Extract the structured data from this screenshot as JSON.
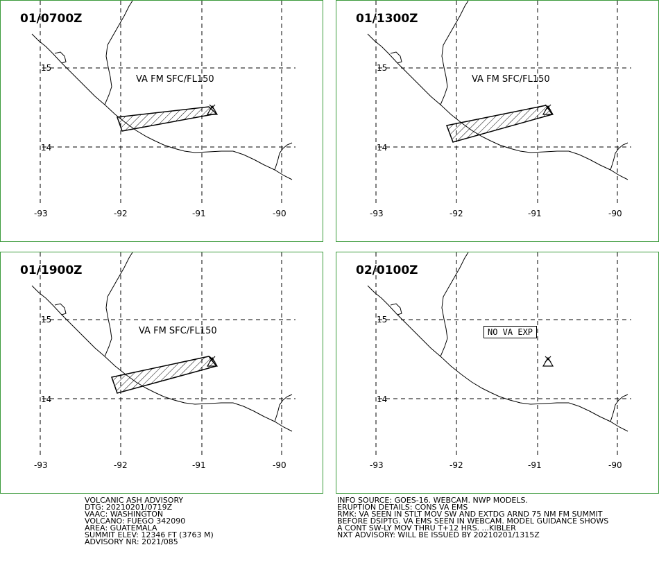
{
  "panels": [
    {
      "title": "01/0700Z",
      "label": "VA FM SFC/FL150",
      "kind": "ash"
    },
    {
      "title": "01/1300Z",
      "label": "VA FM SFC/FL150",
      "kind": "ash"
    },
    {
      "title": "01/1900Z",
      "label": "VA FM SFC/FL150",
      "kind": "ash"
    },
    {
      "title": "02/0100Z",
      "label": "NO VA EXP",
      "kind": "none"
    }
  ],
  "lat_labels": [
    "15",
    "14"
  ],
  "lon_labels": [
    "-93",
    "-92",
    "-91",
    "-90"
  ],
  "colors": {
    "panel_border": "#3a9a3a",
    "ink": "#000000"
  },
  "icons": {
    "volcano": "volcano-triangle-icon"
  },
  "advisory_left": [
    "VOLCANIC ASH ADVISORY",
    "DTG: 20210201/0719Z",
    "VAAC: WASHINGTON",
    "VOLCANO: FUEGO 342090",
    "AREA: GUATEMALA",
    "SUMMIT ELEV: 12346 FT (3763 M)",
    "ADVISORY NR: 2021/085"
  ],
  "advisory_right": [
    "INFO SOURCE: GOES-16. WEBCAM. NWP MODELS.",
    "ERUPTION DETAILS: CONS VA EMS",
    "RMK: VA SEEN IN STLT MOV SW AND EXTDG ARND 75 NM FM SUMMIT",
    "BEFORE DSIPTG. VA EMS SEEN IN WEBCAM. MODEL GUIDANCE SHOWS",
    "A CONT SW-LY MOV THRU T+12 HRS. ...KIBLER",
    "NXT ADVISORY: WILL BE ISSUED BY 20210201/1315Z"
  ]
}
